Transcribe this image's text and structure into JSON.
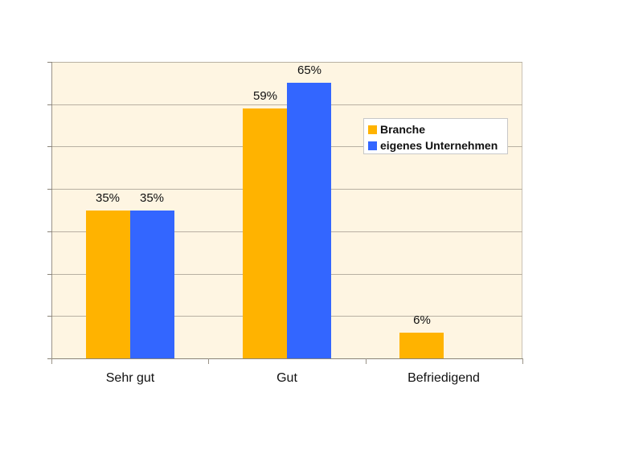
{
  "chart_data": {
    "type": "bar",
    "title": "",
    "xlabel": "",
    "ylabel": "",
    "categories": [
      "Sehr gut",
      "Gut",
      "Befriedigend"
    ],
    "series": [
      {
        "name": "Branche",
        "color": "#ffb300",
        "values": [
          35,
          59,
          6
        ],
        "labels": [
          "35%",
          "59%",
          "6%"
        ]
      },
      {
        "name": "eigenes Unternehmen",
        "color": "#3366ff",
        "values": [
          35,
          65,
          null
        ],
        "labels": [
          "35%",
          "65%",
          ""
        ]
      }
    ],
    "ylim": [
      0,
      70
    ],
    "y_gridlines": [
      0,
      10,
      20,
      30,
      40,
      50,
      60,
      70
    ],
    "y_tick_labels_visible": false,
    "grid": true,
    "legend_position": "upper right inside plot",
    "value_unit": "%"
  },
  "legend": {
    "items": [
      {
        "label": "Branche",
        "color": "#ffb300"
      },
      {
        "label": "eigenes Unternehmen",
        "color": "#3366ff"
      }
    ]
  },
  "colors": {
    "plot_background": "#fef5e2",
    "gridline": "#b8b0a2",
    "branche": "#ffb300",
    "eigenes": "#3366ff"
  }
}
